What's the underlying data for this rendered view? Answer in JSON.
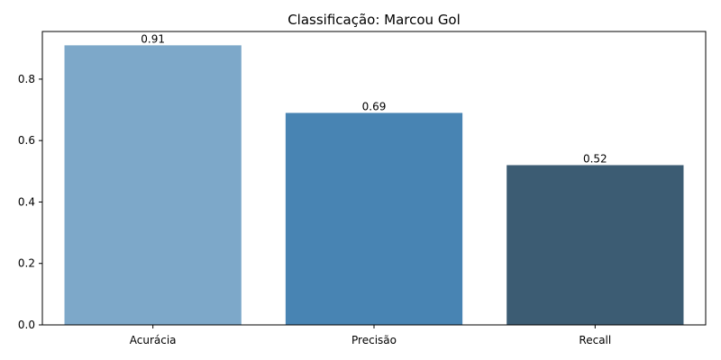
{
  "chart_data": {
    "type": "bar",
    "title": "Classificação: Marcou Gol",
    "xlabel": "",
    "ylabel": "",
    "categories": [
      "Acurácia",
      "Precisão",
      "Recall"
    ],
    "values": [
      0.91,
      0.69,
      0.52
    ],
    "value_labels": [
      "0.91",
      "0.69",
      "0.52"
    ],
    "colors": [
      "#7da8c9",
      "#4884b3",
      "#3c5c73"
    ],
    "ylim": [
      0,
      0.955
    ],
    "yticks": [
      0.0,
      0.2,
      0.4,
      0.6,
      0.8
    ],
    "ytick_labels": [
      "0.0",
      "0.2",
      "0.4",
      "0.6",
      "0.8"
    ],
    "grid": false,
    "legend": "none"
  }
}
